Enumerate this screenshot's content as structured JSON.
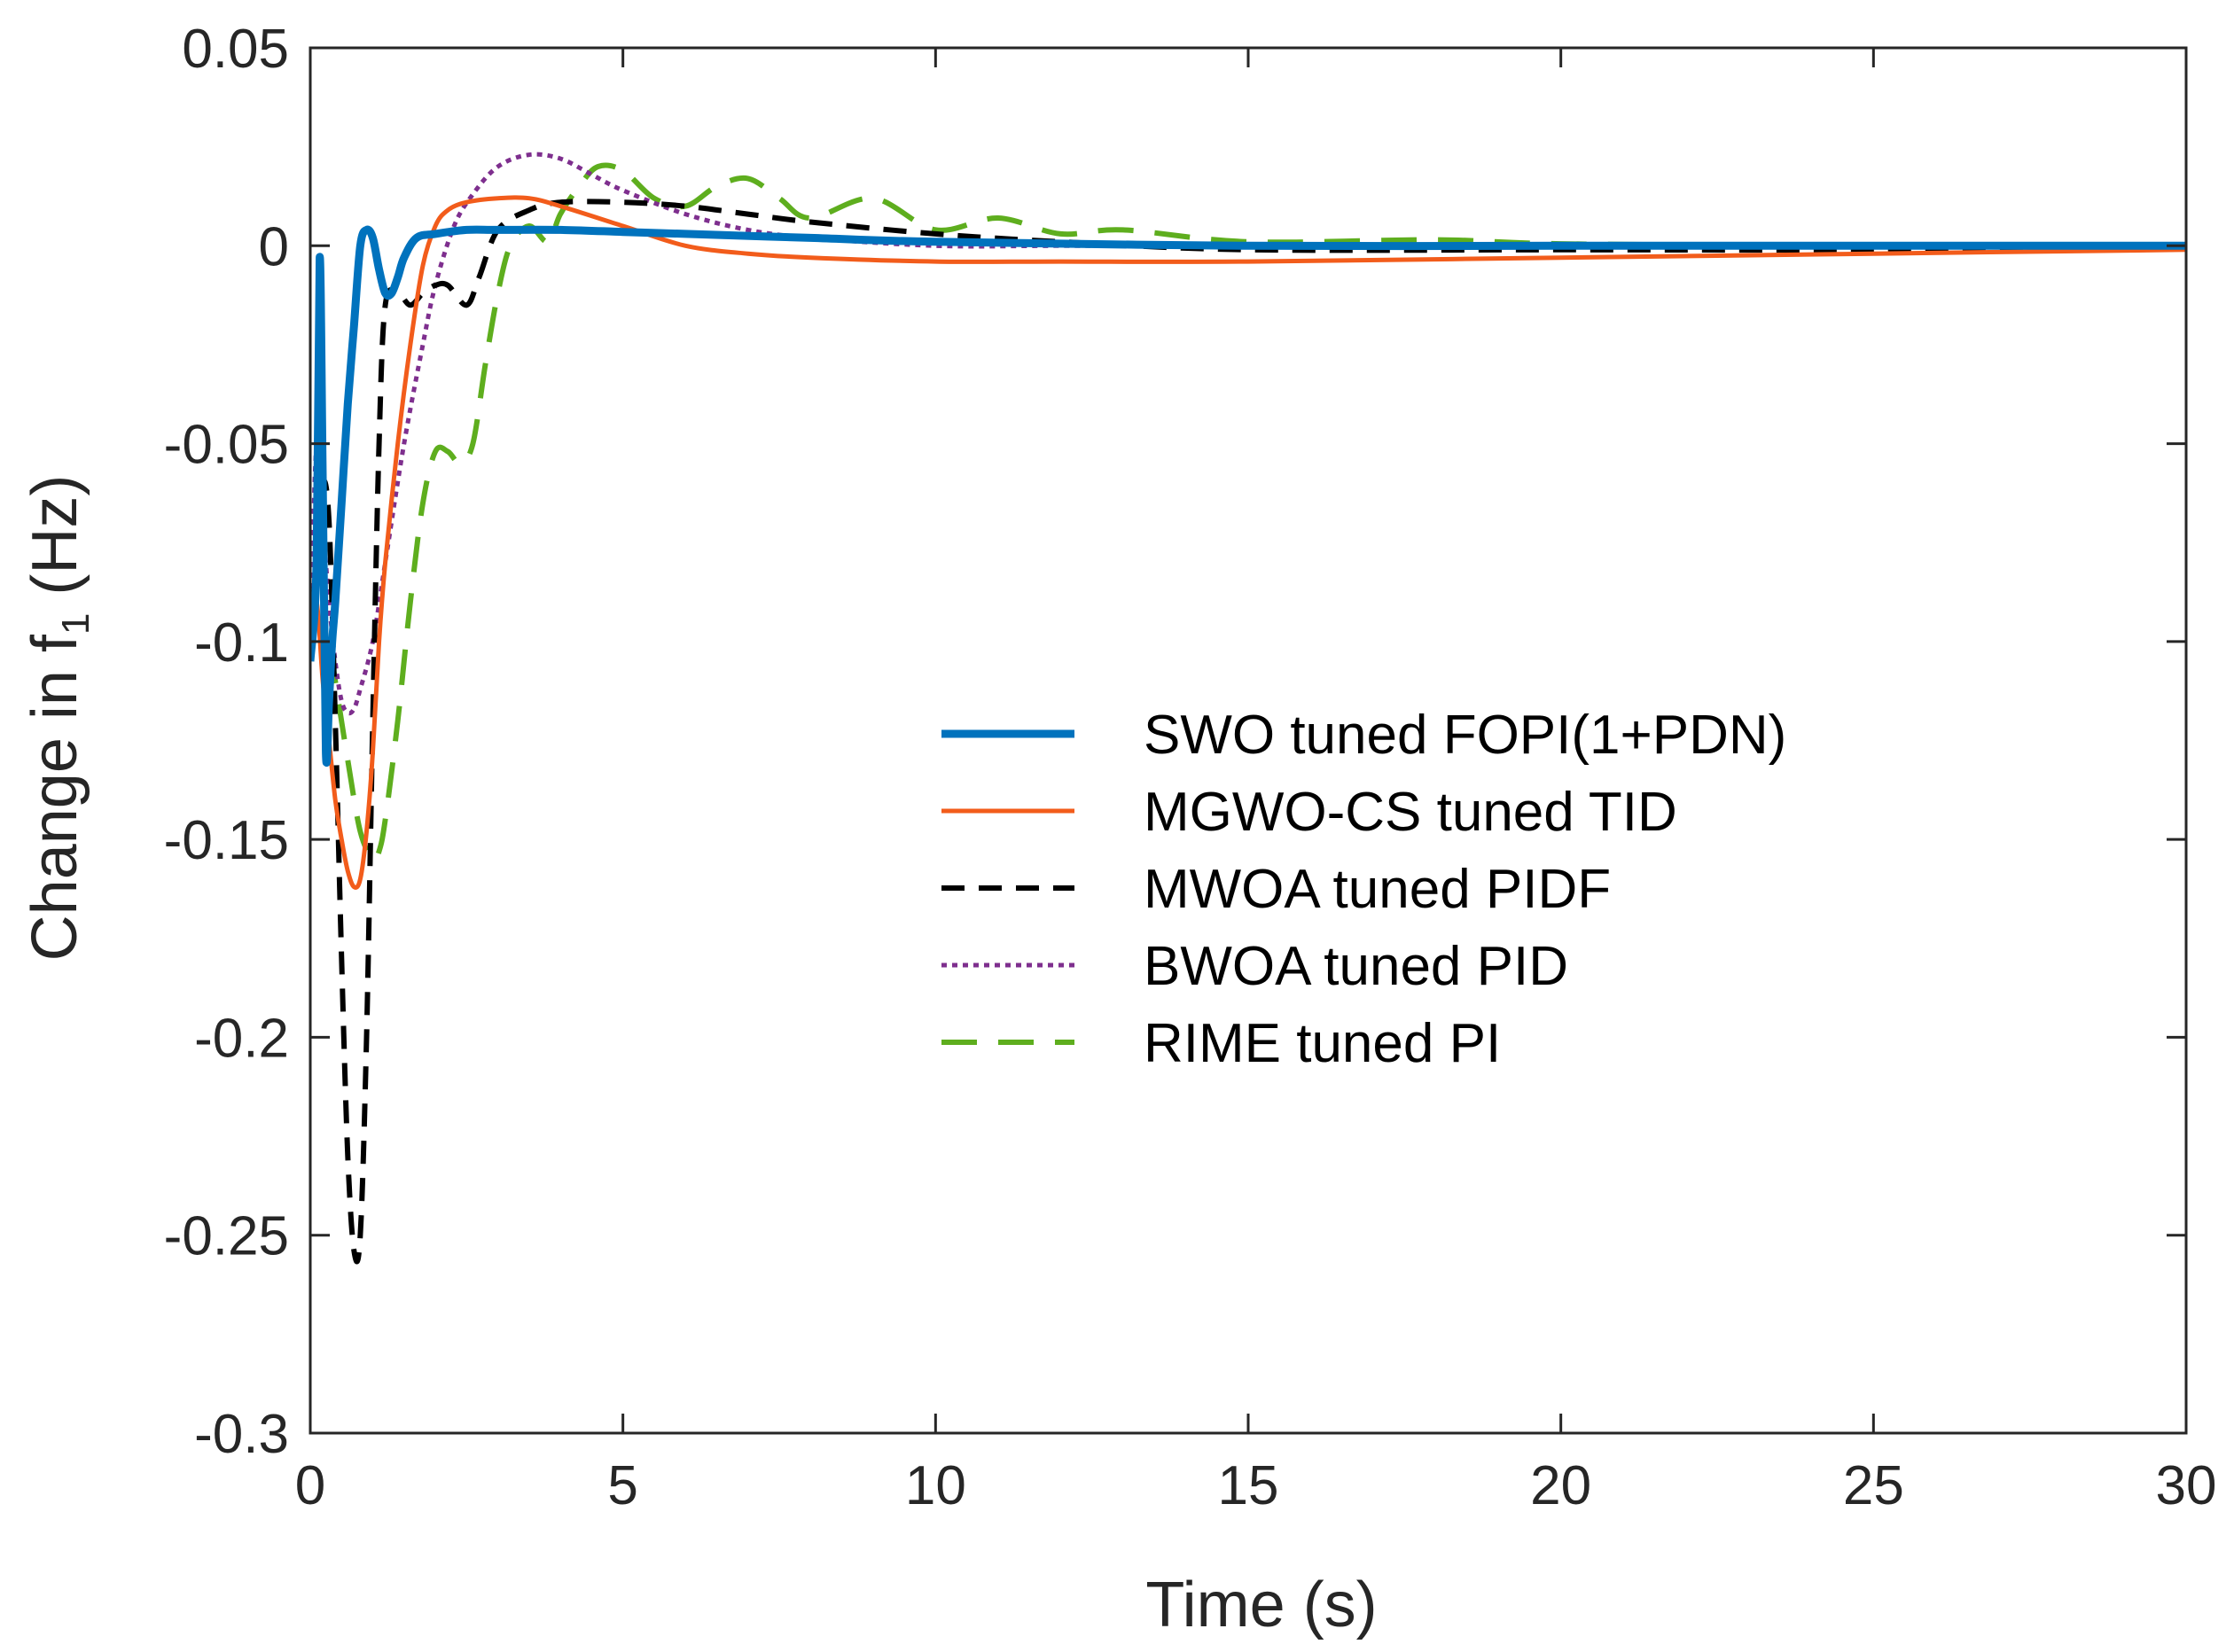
{
  "chart_data": {
    "type": "line",
    "title": "",
    "xlabel": "Time (s)",
    "ylabel_main": "Change in f",
    "ylabel_sub": "1",
    "ylabel_unit": " (Hz)",
    "xlim": [
      0,
      30
    ],
    "ylim": [
      -0.3,
      0.05
    ],
    "xticks": [
      0,
      5,
      10,
      15,
      20,
      25,
      30
    ],
    "xtick_labels": [
      "0",
      "5",
      "10",
      "15",
      "20",
      "25",
      "30"
    ],
    "yticks": [
      0.05,
      0,
      -0.05,
      -0.1,
      -0.15,
      -0.2,
      -0.25,
      -0.3
    ],
    "ytick_labels": [
      "0.05",
      "0",
      "-0.05",
      "-0.1",
      "-0.15",
      "-0.2",
      "-0.25",
      "-0.3"
    ],
    "grid": false,
    "legend_position": "center-right",
    "series": [
      {
        "name": "SWO tuned FOPI(1+PDN)",
        "color": "#0072BD",
        "dash": "solid",
        "width": 9,
        "x": [
          0,
          0.1,
          0.15,
          0.2,
          0.25,
          0.3,
          0.35,
          0.4,
          0.5,
          0.6,
          0.7,
          0.8,
          0.9,
          1.0,
          1.1,
          1.2,
          1.3,
          1.4,
          1.5,
          1.7,
          2.0,
          2.5,
          3,
          4,
          5,
          6,
          8,
          10,
          15,
          20,
          25,
          30
        ],
        "y": [
          -0.105,
          -0.08,
          -0.003,
          -0.06,
          -0.128,
          -0.115,
          -0.1,
          -0.09,
          -0.065,
          -0.04,
          -0.02,
          0.0,
          0.004,
          0.002,
          -0.006,
          -0.012,
          -0.012,
          -0.008,
          -0.003,
          0.002,
          0.003,
          0.004,
          0.004,
          0.004,
          0.0035,
          0.003,
          0.002,
          0.001,
          0.0,
          0.0,
          0.0,
          0.0
        ]
      },
      {
        "name": "MGWO-CS tuned TID",
        "color": "#F25C1B",
        "dash": "solid",
        "width": 5,
        "x": [
          0,
          0.1,
          0.2,
          0.3,
          0.4,
          0.5,
          0.6,
          0.7,
          0.8,
          0.9,
          1.0,
          1.1,
          1.2,
          1.4,
          1.6,
          1.8,
          2.0,
          2.2,
          2.5,
          3.0,
          3.5,
          4.0,
          5.0,
          6.0,
          7.0,
          8.0,
          10,
          12,
          15,
          20,
          25,
          30
        ],
        "y": [
          -0.1,
          -0.09,
          -0.11,
          -0.125,
          -0.14,
          -0.15,
          -0.158,
          -0.162,
          -0.16,
          -0.148,
          -0.128,
          -0.1,
          -0.08,
          -0.05,
          -0.025,
          -0.005,
          0.005,
          0.009,
          0.011,
          0.012,
          0.012,
          0.01,
          0.005,
          0.0,
          -0.002,
          -0.003,
          -0.004,
          -0.004,
          -0.004,
          -0.003,
          -0.002,
          -0.001
        ]
      },
      {
        "name": "MWOA tuned PIDF",
        "color": "#000000",
        "dash": "26,16",
        "width": 6,
        "x": [
          0,
          0.1,
          0.2,
          0.3,
          0.4,
          0.5,
          0.6,
          0.7,
          0.8,
          0.9,
          1.0,
          1.1,
          1.2,
          1.4,
          1.6,
          1.8,
          2.0,
          2.2,
          2.5,
          2.7,
          3.0,
          3.5,
          4,
          5,
          6,
          7,
          8,
          10,
          12,
          15,
          20,
          25,
          30
        ],
        "y": [
          -0.1,
          -0.08,
          -0.06,
          -0.07,
          -0.12,
          -0.18,
          -0.23,
          -0.254,
          -0.25,
          -0.2,
          -0.12,
          -0.05,
          -0.015,
          -0.012,
          -0.015,
          -0.012,
          -0.01,
          -0.01,
          -0.015,
          -0.008,
          0.004,
          0.009,
          0.011,
          0.011,
          0.01,
          0.008,
          0.006,
          0.003,
          0.001,
          -0.001,
          -0.001,
          -0.001,
          0.0
        ]
      },
      {
        "name": "BWOA tuned PID",
        "color": "#7E2F8E",
        "dash": "6,6",
        "width": 5,
        "x": [
          0,
          0.1,
          0.2,
          0.3,
          0.4,
          0.5,
          0.6,
          0.7,
          0.8,
          1.0,
          1.2,
          1.5,
          1.8,
          2.0,
          2.3,
          2.6,
          3.0,
          3.5,
          4.0,
          4.5,
          5.0,
          6.0,
          7.0,
          8.0,
          10,
          12,
          15,
          20,
          25,
          30
        ],
        "y": [
          -0.1,
          -0.05,
          -0.07,
          -0.09,
          -0.105,
          -0.115,
          -0.118,
          -0.117,
          -0.112,
          -0.1,
          -0.08,
          -0.05,
          -0.025,
          -0.01,
          0.005,
          0.013,
          0.02,
          0.023,
          0.022,
          0.018,
          0.014,
          0.008,
          0.004,
          0.002,
          0.0,
          0.0,
          0.0,
          0.0,
          0.0,
          0.0
        ]
      },
      {
        "name": "RIME tuned PI",
        "color": "#5EAE1E",
        "dash": "40,24",
        "width": 6,
        "x": [
          0,
          0.1,
          0.2,
          0.3,
          0.4,
          0.6,
          0.8,
          1.0,
          1.1,
          1.2,
          1.4,
          1.6,
          1.8,
          2.0,
          2.2,
          2.4,
          2.6,
          2.8,
          3.0,
          3.2,
          3.5,
          3.8,
          4.0,
          4.3,
          4.6,
          5.0,
          5.5,
          6.0,
          6.5,
          7.0,
          7.5,
          8.0,
          9.0,
          10,
          11,
          12,
          13,
          15,
          18,
          20,
          25,
          30
        ],
        "y": [
          -0.1,
          -0.095,
          -0.095,
          -0.1,
          -0.11,
          -0.13,
          -0.148,
          -0.155,
          -0.153,
          -0.145,
          -0.12,
          -0.09,
          -0.065,
          -0.052,
          -0.052,
          -0.055,
          -0.05,
          -0.03,
          -0.012,
          0.0,
          0.005,
          0.001,
          0.008,
          0.015,
          0.02,
          0.019,
          0.012,
          0.01,
          0.015,
          0.017,
          0.012,
          0.007,
          0.012,
          0.004,
          0.007,
          0.003,
          0.004,
          0.001,
          0.0015,
          0.0005,
          0.0,
          0.0
        ]
      }
    ]
  }
}
